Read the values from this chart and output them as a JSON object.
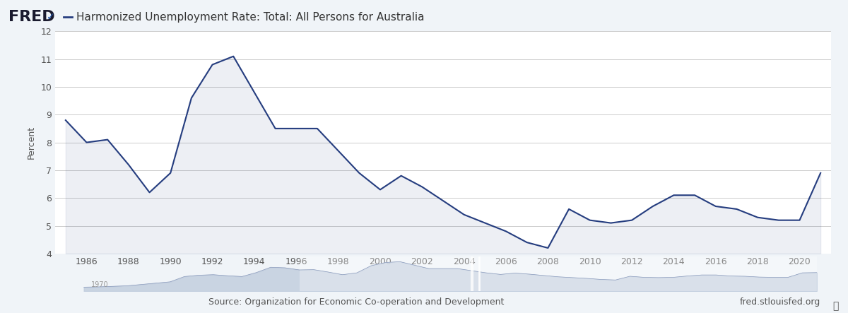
{
  "title": "Harmonized Unemployment Rate: Total: All Persons for Australia",
  "ylabel": "Percent",
  "source_text": "Source: Organization for Economic Co-operation and Development",
  "fred_url": "fred.stlouisfed.org",
  "ylim": [
    4,
    12
  ],
  "yticks": [
    4,
    5,
    6,
    7,
    8,
    9,
    10,
    11,
    12
  ],
  "line_color": "#253D7F",
  "line_width": 1.5,
  "bg_color": "#f0f4f8",
  "plot_bg_color": "#ffffff",
  "title_color": "#333333",
  "axis_label_color": "#555555",
  "tick_color": "#555555",
  "years": [
    1985,
    1986,
    1987,
    1988,
    1989,
    1990,
    1991,
    1992,
    1993,
    1994,
    1995,
    1996,
    1997,
    1998,
    1999,
    2000,
    2001,
    2002,
    2003,
    2004,
    2005,
    2006,
    2007,
    2008,
    2009,
    2010,
    2011,
    2012,
    2013,
    2014,
    2015,
    2016,
    2017,
    2018,
    2019,
    2020,
    2021
  ],
  "values": [
    8.8,
    8.0,
    8.1,
    7.2,
    6.2,
    6.9,
    9.6,
    10.8,
    11.1,
    9.8,
    8.5,
    8.5,
    8.5,
    7.7,
    6.9,
    6.3,
    6.8,
    6.4,
    5.9,
    5.4,
    5.1,
    4.8,
    4.4,
    4.2,
    5.6,
    5.2,
    5.1,
    5.2,
    5.7,
    6.1,
    6.1,
    5.7,
    5.6,
    5.3,
    5.2,
    5.2,
    6.9
  ],
  "minimap_color": "#8899bb",
  "minimap_fill": "#c0ccdd",
  "xtick_years": [
    1986,
    1988,
    1990,
    1992,
    1994,
    1996,
    1998,
    2000,
    2002,
    2004,
    2006,
    2008,
    2010,
    2012,
    2014,
    2016,
    2018,
    2020
  ],
  "fred_logo_color": "#333333",
  "legend_line_color": "#253D7F"
}
